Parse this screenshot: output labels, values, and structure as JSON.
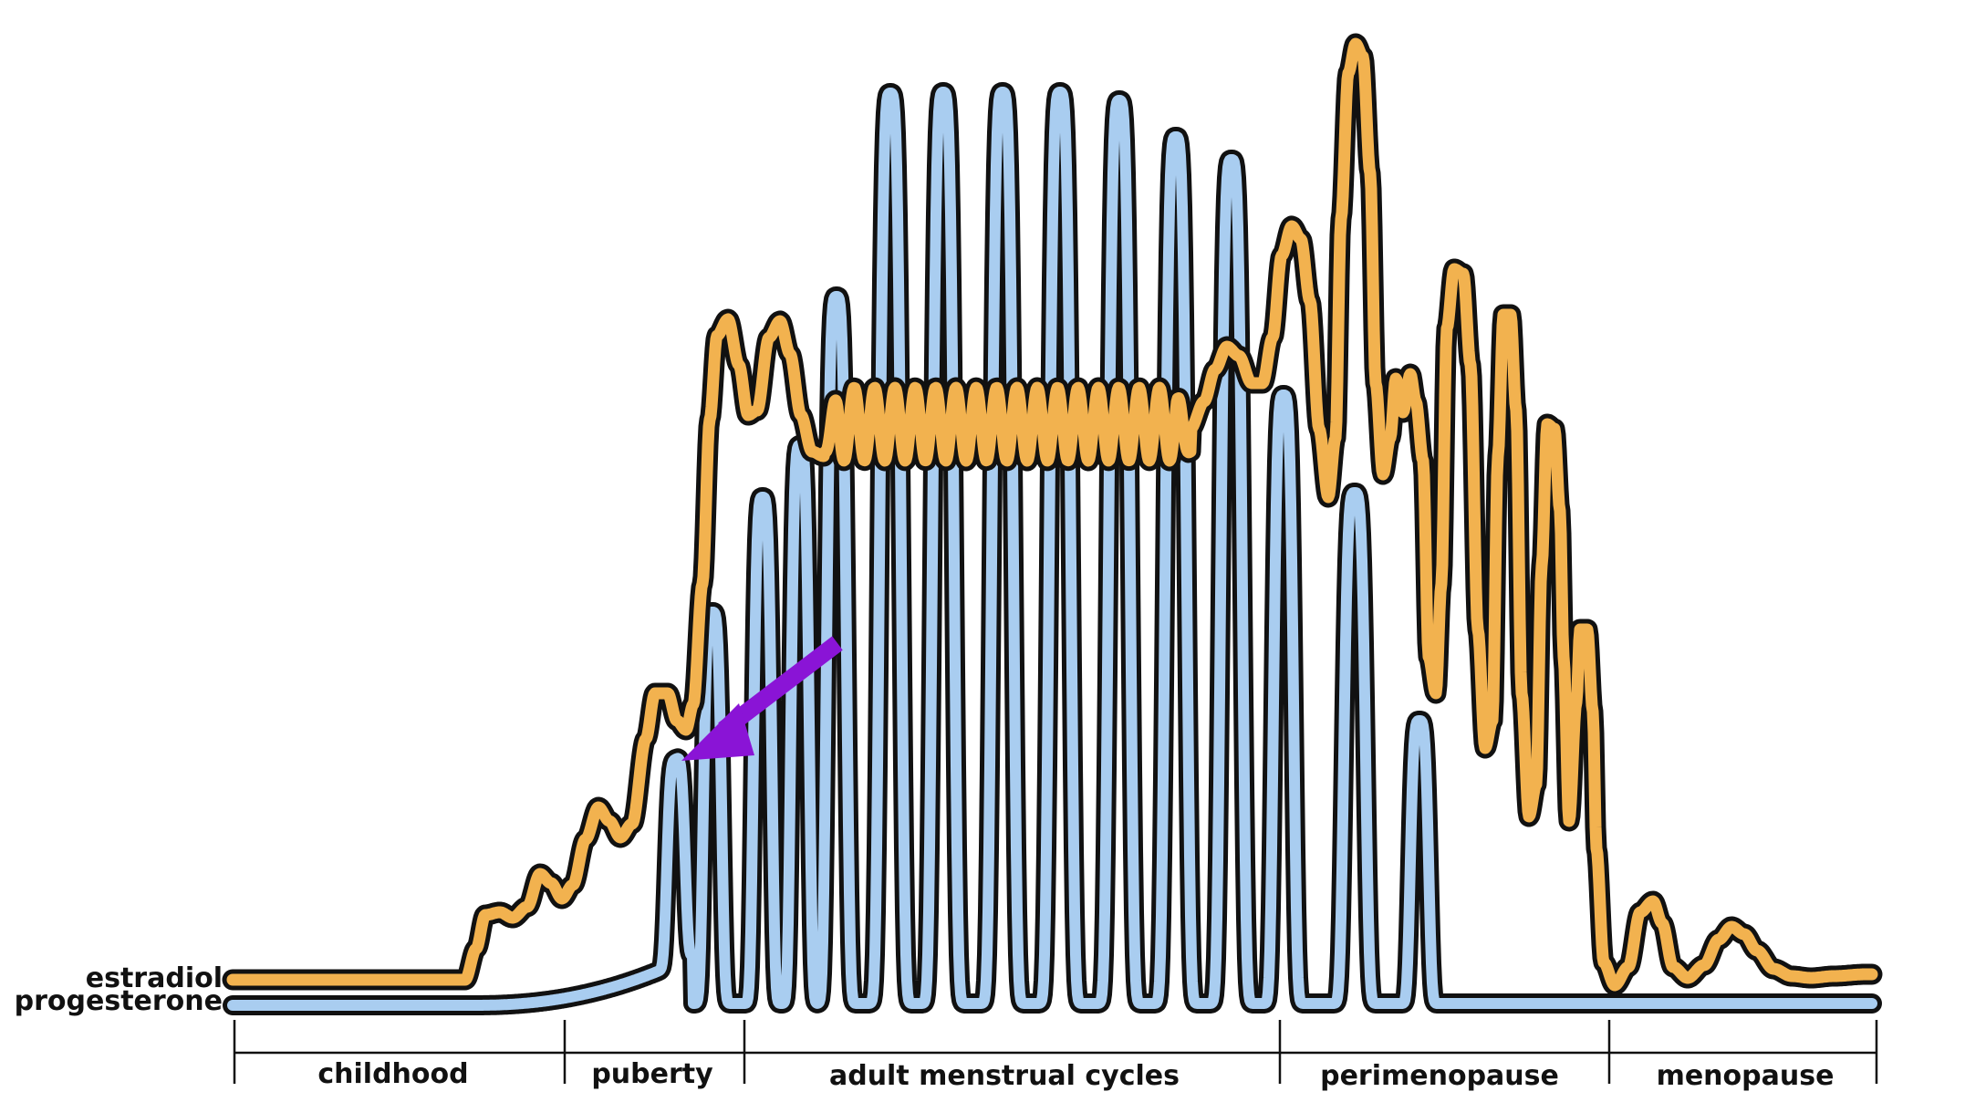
{
  "chart_data": {
    "type": "line",
    "title": "",
    "xlabel": "",
    "ylabel": "",
    "grid": false,
    "series": [
      {
        "name": "estradiol",
        "color": "#F2B24F"
      },
      {
        "name": "progesterone",
        "color": "#A9CDF0"
      }
    ],
    "stages": [
      {
        "label": "childhood"
      },
      {
        "label": "puberty"
      },
      {
        "label": "adult menstrual cycles"
      },
      {
        "label": "perimenopause"
      },
      {
        "label": "menopause"
      }
    ],
    "annotation": {
      "type": "arrow",
      "color": "#8A14D6",
      "target": "first progesterone peak in puberty"
    }
  }
}
